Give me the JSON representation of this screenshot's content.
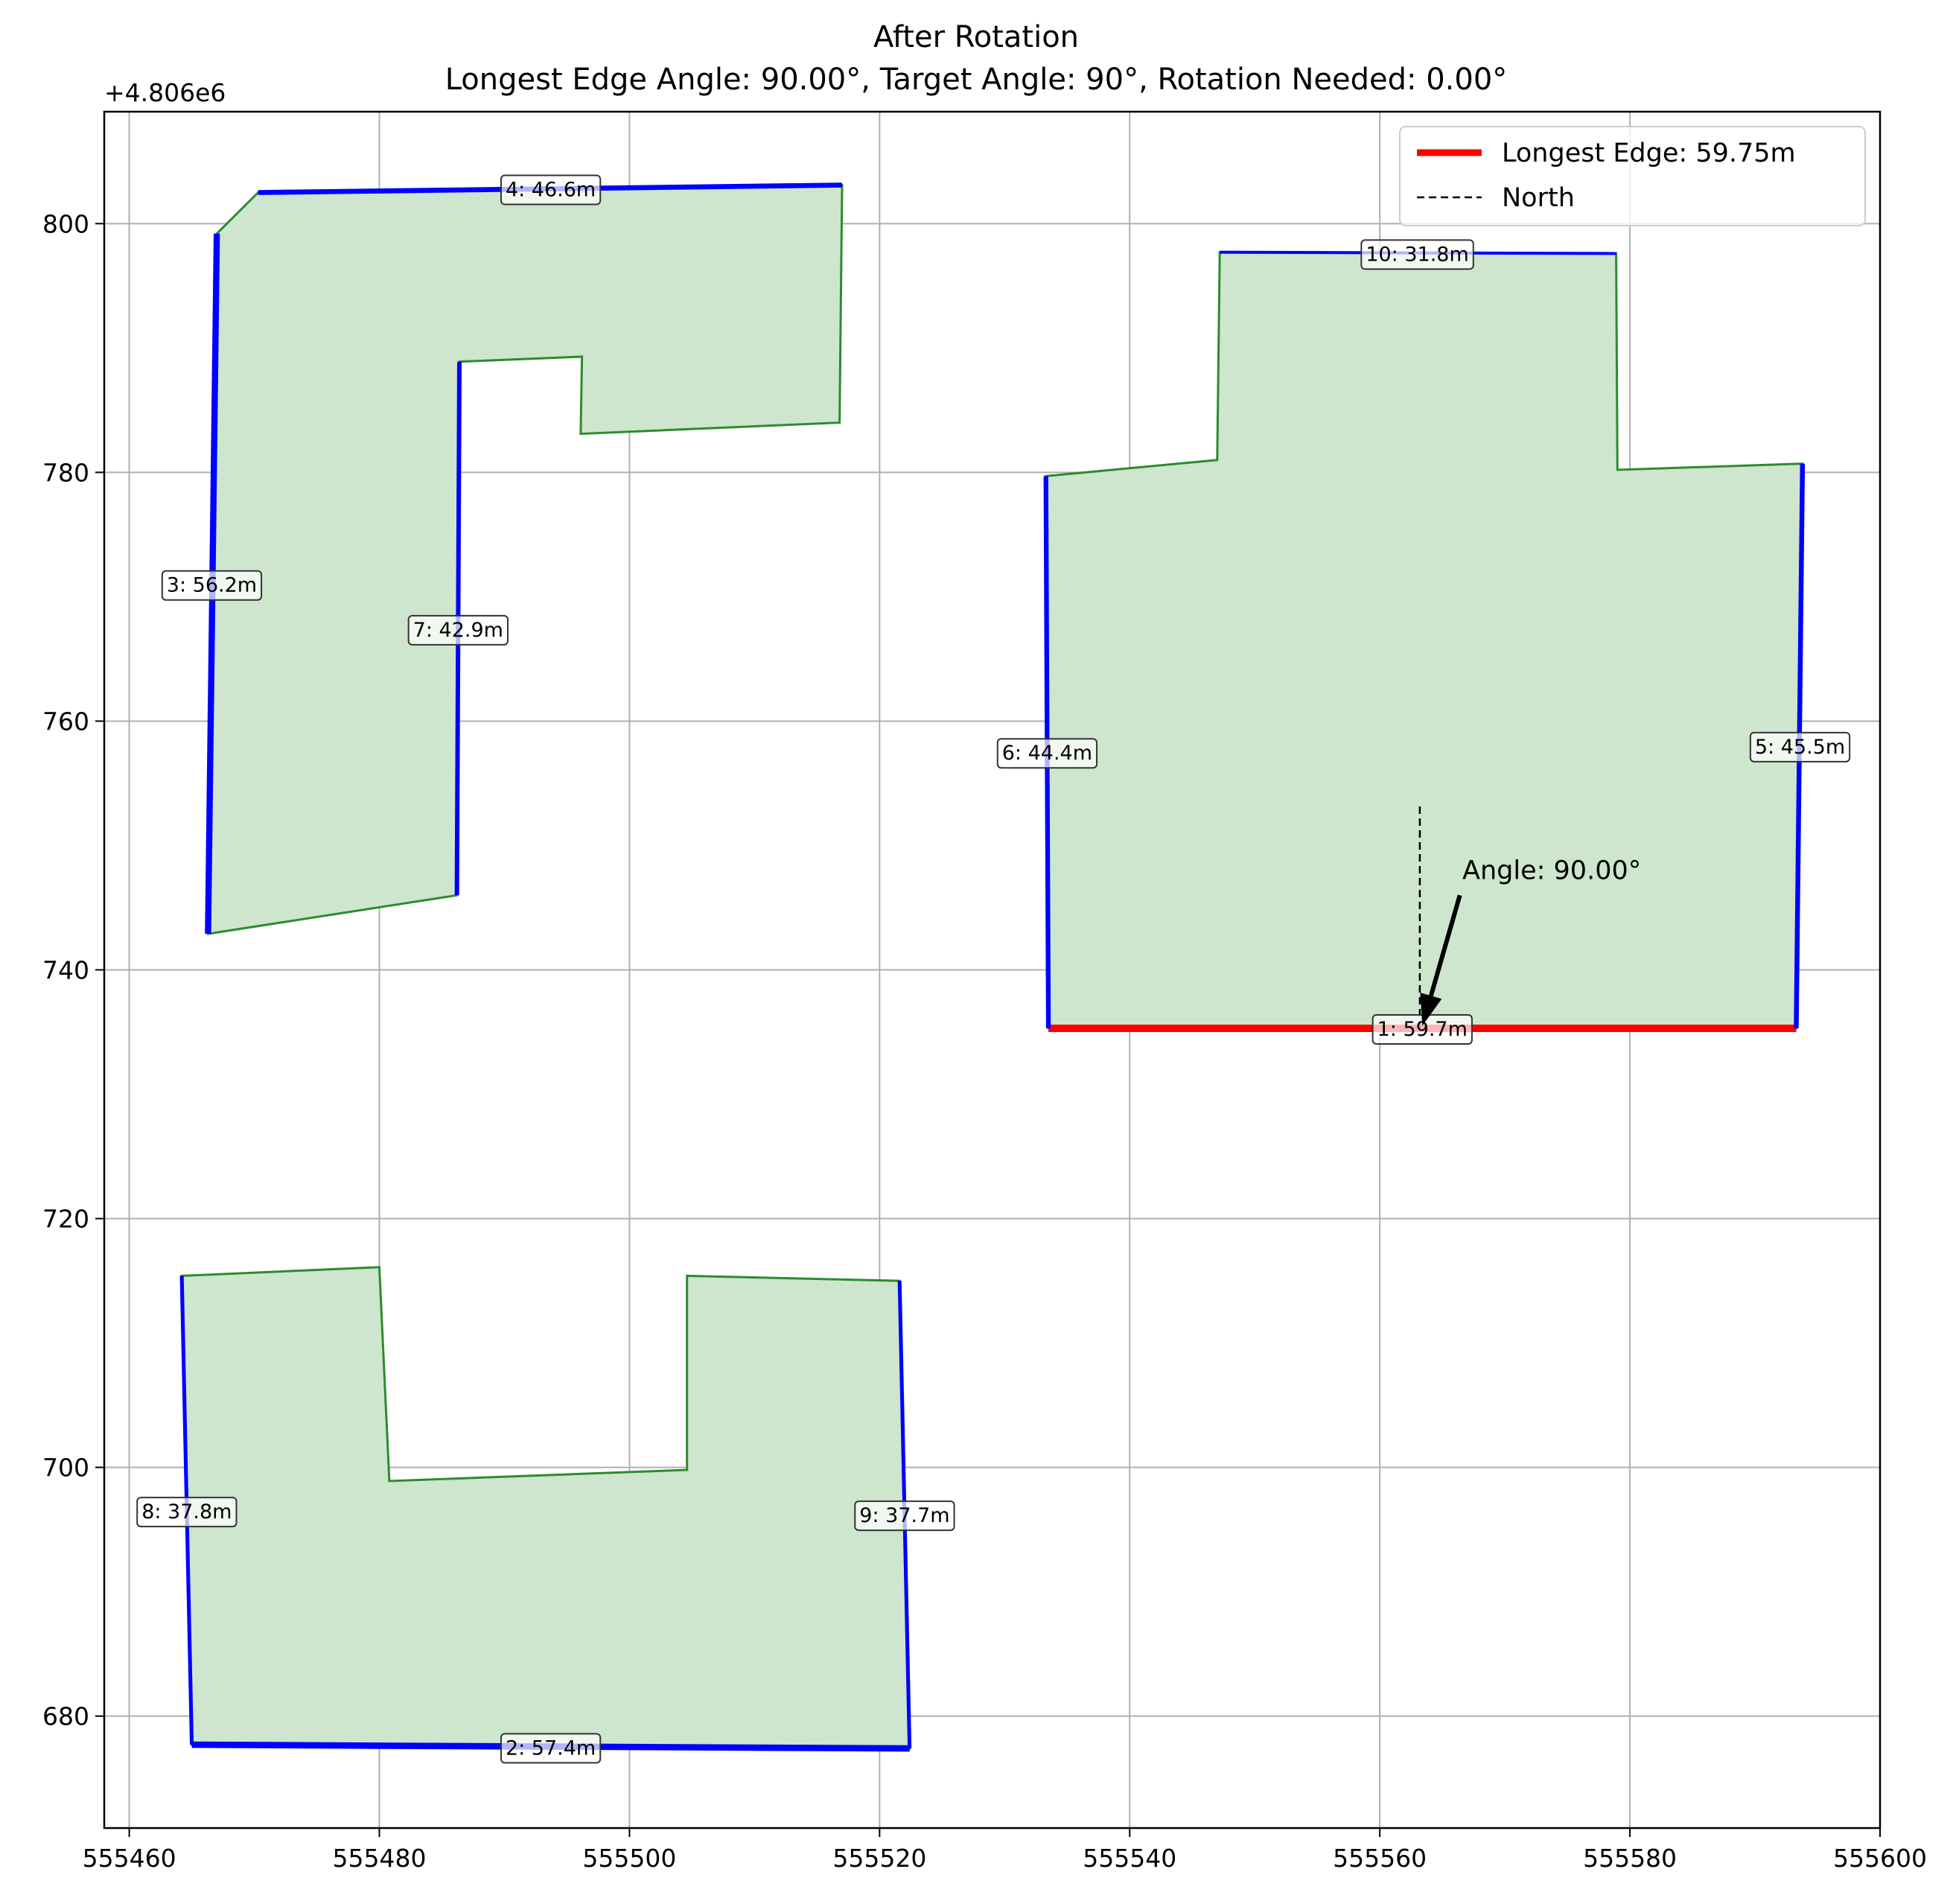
{
  "chart_data": {
    "type": "line",
    "title": "After Rotation",
    "subtitle": "Longest Edge Angle: 90.00°, Target Angle: 90°, Rotation Needed: 0.00°",
    "xlabel": "",
    "ylabel": "",
    "y_offset_label": "+4.806e6",
    "y_offset": 4806000,
    "xlim": [
      555458,
      555600
    ],
    "ylim": [
      671,
      809
    ],
    "grid": true,
    "x_ticks": [
      555460,
      555480,
      555500,
      555520,
      555540,
      555560,
      555580,
      555600
    ],
    "y_ticks": [
      680,
      700,
      720,
      740,
      760,
      780,
      800
    ],
    "colors": {
      "fill": "#cde6cd",
      "outline": "#2e8b2e",
      "edge": "#0000ff",
      "longest": "#ff0000",
      "north": "#000000"
    },
    "polygons": [
      {
        "points": [
          [
            555466.3,
            742.9
          ],
          [
            555486.2,
            746.0
          ],
          [
            555486.4,
            788.9
          ],
          [
            555496.2,
            789.3
          ],
          [
            555496.1,
            783.1
          ],
          [
            555516.8,
            784.0
          ],
          [
            555517.0,
            803.1
          ],
          [
            555470.3,
            802.5
          ],
          [
            555467.0,
            799.2
          ]
        ]
      },
      {
        "points": [
          [
            555533.3,
            779.7
          ],
          [
            555547.0,
            781.0
          ],
          [
            555547.2,
            797.7
          ],
          [
            555578.9,
            797.6
          ],
          [
            555579.0,
            780.2
          ],
          [
            555593.8,
            780.7
          ],
          [
            555593.3,
            735.3
          ],
          [
            555533.5,
            735.3
          ]
        ]
      },
      {
        "points": [
          [
            555464.2,
            715.4
          ],
          [
            555480.0,
            716.1
          ],
          [
            555480.8,
            698.9
          ],
          [
            555504.6,
            699.8
          ],
          [
            555504.6,
            715.4
          ],
          [
            555521.6,
            715.0
          ],
          [
            555522.4,
            677.4
          ],
          [
            555465.0,
            677.7
          ]
        ]
      }
    ],
    "edges": [
      {
        "id": 1,
        "label": "1: 59.7m",
        "from": [
          555533.5,
          735.3
        ],
        "to": [
          555593.3,
          735.3
        ],
        "length": 59.7,
        "longest": true,
        "label_at": [
          555563.4,
          735.3
        ]
      },
      {
        "id": 2,
        "label": "2: 57.4m",
        "from": [
          555465.0,
          677.7
        ],
        "to": [
          555522.4,
          677.4
        ],
        "length": 57.4,
        "longest": false,
        "label_at": [
          555493.7,
          677.5
        ]
      },
      {
        "id": 3,
        "label": "3: 56.2m",
        "from": [
          555466.3,
          742.9
        ],
        "to": [
          555467.0,
          799.2
        ],
        "length": 56.2,
        "longest": false,
        "label_at": [
          555466.6,
          771.0
        ]
      },
      {
        "id": 4,
        "label": "4: 46.6m",
        "from": [
          555470.3,
          802.5
        ],
        "to": [
          555517.0,
          803.1
        ],
        "length": 46.6,
        "longest": false,
        "label_at": [
          555493.7,
          802.8
        ]
      },
      {
        "id": 5,
        "label": "5: 45.5m",
        "from": [
          555593.8,
          780.7
        ],
        "to": [
          555593.3,
          735.3
        ],
        "length": 45.5,
        "longest": false,
        "label_at": [
          555593.6,
          758.0
        ]
      },
      {
        "id": 6,
        "label": "6: 44.4m",
        "from": [
          555533.3,
          779.7
        ],
        "to": [
          555533.5,
          735.3
        ],
        "length": 44.4,
        "longest": false,
        "label_at": [
          555533.4,
          757.5
        ]
      },
      {
        "id": 7,
        "label": "7: 42.9m",
        "from": [
          555486.2,
          746.0
        ],
        "to": [
          555486.4,
          788.9
        ],
        "length": 42.9,
        "longest": false,
        "label_at": [
          555486.3,
          767.4
        ]
      },
      {
        "id": 8,
        "label": "8: 37.8m",
        "from": [
          555464.2,
          715.4
        ],
        "to": [
          555465.0,
          677.7
        ],
        "length": 37.8,
        "longest": false,
        "label_at": [
          555464.6,
          696.5
        ]
      },
      {
        "id": 9,
        "label": "9: 37.7m",
        "from": [
          555521.6,
          715.0
        ],
        "to": [
          555522.4,
          677.4
        ],
        "length": 37.7,
        "longest": false,
        "label_at": [
          555522.0,
          696.2
        ]
      },
      {
        "id": 10,
        "label": "10: 31.8m",
        "from": [
          555547.2,
          797.7
        ],
        "to": [
          555578.9,
          797.6
        ],
        "length": 31.8,
        "longest": false,
        "label_at": [
          555563.0,
          797.6
        ]
      }
    ],
    "north_line": {
      "x": 555563.2,
      "y_from": 735.3,
      "y_to": 753.3
    },
    "annotation": {
      "text": "Angle: 90.00°",
      "text_at": [
        555566.6,
        747.3
      ],
      "arrow_tip": [
        555563.4,
        735.5
      ],
      "arrow_from": [
        555566.4,
        746.0
      ]
    },
    "legend": {
      "position": "top-right",
      "entries": [
        {
          "label": "Longest Edge: 59.75m",
          "style": "longest"
        },
        {
          "label": "North",
          "style": "north"
        }
      ]
    }
  }
}
